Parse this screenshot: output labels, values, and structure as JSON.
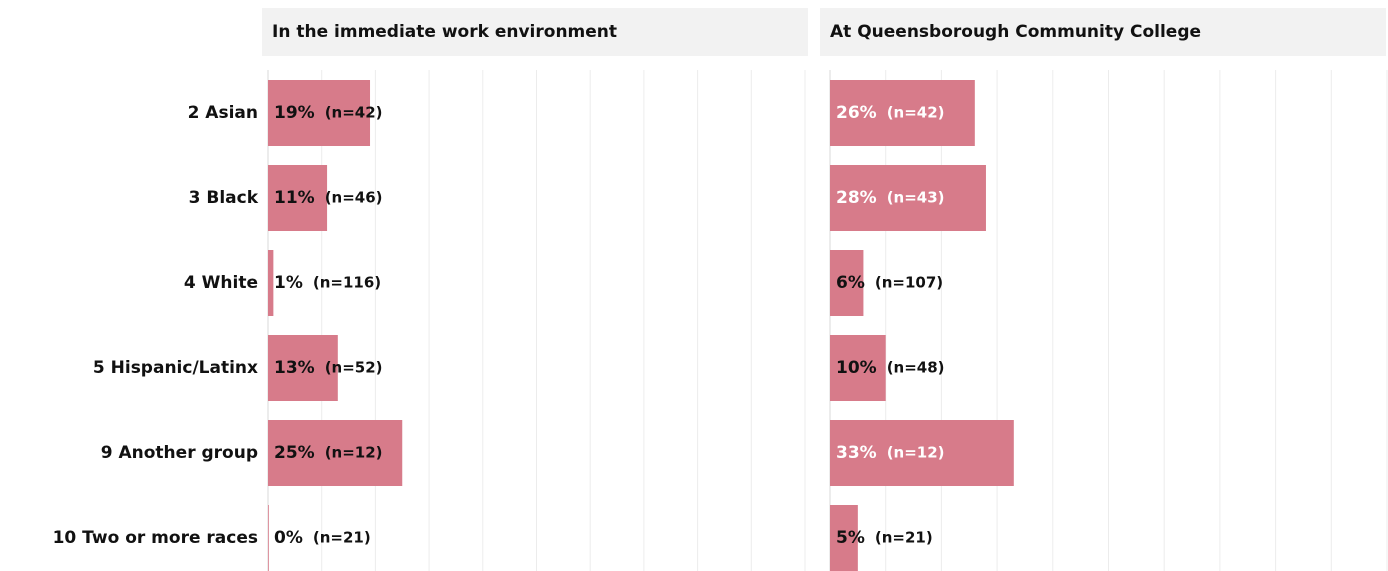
{
  "chart_data": [
    {
      "type": "bar",
      "orientation": "horizontal",
      "title": "In the immediate work environment",
      "categories": [
        "2 Asian",
        "3 Black",
        "4 White",
        "5 Hispanic/Latinx",
        "9 Another group",
        "10 Two or more races"
      ],
      "values": [
        19,
        11,
        1,
        13,
        25,
        0
      ],
      "value_labels": [
        "19%",
        "11%",
        "1%",
        "13%",
        "25%",
        "0%"
      ],
      "count_labels": [
        "(n=42)",
        "(n=46)",
        "(n=116)",
        "(n=52)",
        "(n=12)",
        "(n=21)"
      ],
      "label_colors": [
        "#111111",
        "#111111",
        "#111111",
        "#111111",
        "#111111",
        "#111111"
      ],
      "color": "#d77b8a",
      "xlim": [
        0,
        100
      ],
      "xticks": [
        0,
        10,
        20,
        30,
        40,
        50,
        60,
        70,
        80,
        90,
        100
      ],
      "grid": true
    },
    {
      "type": "bar",
      "orientation": "horizontal",
      "title": "At Queensborough Community College",
      "values": [
        26,
        28,
        6,
        10,
        33,
        5
      ],
      "value_labels": [
        "26%",
        "28%",
        "6%",
        "10%",
        "33%",
        "5%"
      ],
      "count_labels": [
        "(n=42)",
        "(n=43)",
        "(n=107)",
        "(n=48)",
        "(n=12)",
        "(n=21)"
      ],
      "label_colors": [
        "#ffffff",
        "#ffffff",
        "#111111",
        "#111111",
        "#ffffff",
        "#111111"
      ],
      "color": "#d77b8a",
      "xlim": [
        0,
        100
      ],
      "xticks": [
        0,
        10,
        20,
        30,
        40,
        50,
        60,
        70,
        80,
        90,
        100
      ],
      "grid": true
    }
  ]
}
